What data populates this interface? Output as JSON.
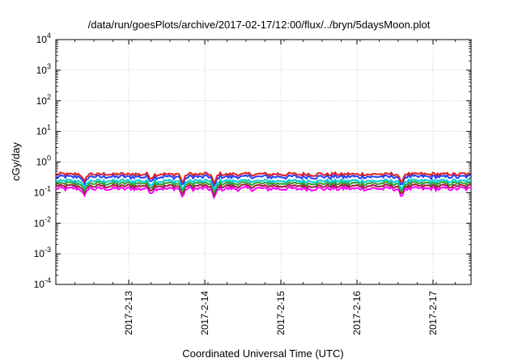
{
  "chart_data": {
    "type": "line",
    "title": "/data/run/goesPlots/archive/2017-02-17/12:00/flux/../bryn/5daysMoon.plot",
    "xlabel": "Coordinated Universal Time (UTC)",
    "ylabel": "cGy/day",
    "y_scale": "log",
    "ylim": [
      0.0001,
      10000
    ],
    "xlim": [
      "2017-02-12 01:00",
      "2017-02-17 12:00"
    ],
    "grid": true,
    "legend": "none",
    "y_ticks": [
      {
        "base": "10",
        "exp": "-4",
        "value": 0.0001
      },
      {
        "base": "10",
        "exp": "-3",
        "value": 0.001
      },
      {
        "base": "10",
        "exp": "-2",
        "value": 0.01
      },
      {
        "base": "10",
        "exp": "-1",
        "value": 0.1
      },
      {
        "base": "10",
        "exp": "0",
        "value": 1
      },
      {
        "base": "10",
        "exp": "1",
        "value": 10
      },
      {
        "base": "10",
        "exp": "2",
        "value": 100
      },
      {
        "base": "10",
        "exp": "3",
        "value": 1000
      },
      {
        "base": "10",
        "exp": "4",
        "value": 10000
      }
    ],
    "x_ticks": [
      {
        "label": "2017-2-13",
        "value": "2017-02-13 00:00"
      },
      {
        "label": "2017-2-14",
        "value": "2017-02-14 00:00"
      },
      {
        "label": "2017-2-15",
        "value": "2017-02-15 00:00"
      },
      {
        "label": "2017-2-16",
        "value": "2017-02-16 00:00"
      },
      {
        "label": "2017-2-17",
        "value": "2017-02-17 00:00"
      }
    ],
    "series": [
      {
        "color": "#e02020",
        "level": 0.4,
        "noise": 0.05
      },
      {
        "color": "#2040ff",
        "level": 0.33,
        "noise": 0.05
      },
      {
        "color": "#00d0d0",
        "level": 0.24,
        "noise": 0.03
      },
      {
        "color": "#30a030",
        "level": 0.2,
        "noise": 0.025
      },
      {
        "color": "#a02040",
        "level": 0.165,
        "noise": 0.02
      },
      {
        "color": "#ff00ff",
        "level": 0.135,
        "noise": 0.02
      }
    ],
    "dips": [
      {
        "x": "2017-02-12 10:00",
        "min": 0.075
      },
      {
        "x": "2017-02-13 07:00",
        "min": 0.09
      },
      {
        "x": "2017-02-13 17:00",
        "min": 0.065
      },
      {
        "x": "2017-02-14 03:00",
        "min": 0.06
      },
      {
        "x": "2017-02-16 14:00",
        "min": 0.065
      }
    ]
  }
}
